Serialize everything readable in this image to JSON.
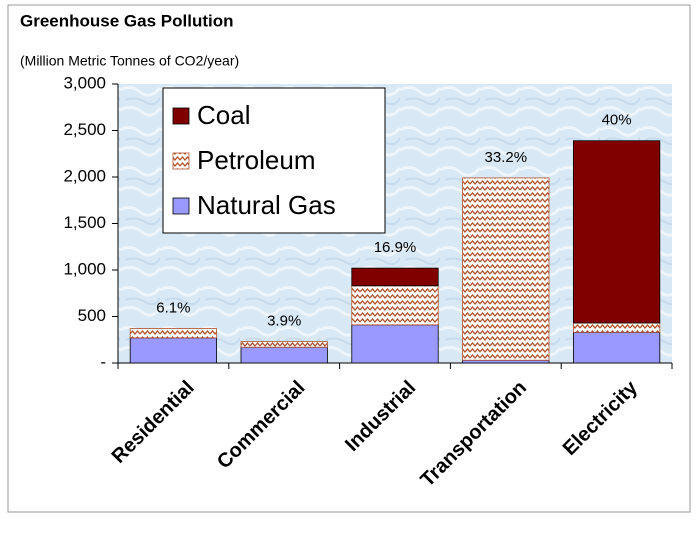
{
  "chart_data": {
    "type": "stacked_bar",
    "title": "Greenhouse Gas  Pollution",
    "subtitle": "(Million Metric Tonnes of CO2/year)",
    "categories": [
      "Residential",
      "Commercial",
      "Industrial",
      "Transportation",
      "Electricity"
    ],
    "series": [
      {
        "name": "Natural Gas",
        "color": "#9999ff",
        "values": [
          270,
          170,
          410,
          30,
          330
        ]
      },
      {
        "name": "Petroleum",
        "color": "#b0502a",
        "pattern": "zigzag",
        "values": [
          100,
          60,
          420,
          1960,
          100
        ]
      },
      {
        "name": "Coal",
        "color": "#800000",
        "values": [
          0,
          0,
          190,
          0,
          1960
        ]
      }
    ],
    "annotations": [
      "6.1%",
      "3.9%",
      "16.9%",
      "33.2%",
      "40%"
    ],
    "ylim": [
      0,
      3000
    ],
    "yticks": [
      {
        "value": 0,
        "label": "-"
      },
      500,
      {
        "value": 1000,
        "label": "1,000"
      },
      {
        "value": 1500,
        "label": "1,500"
      },
      {
        "value": 2000,
        "label": "2,000"
      },
      {
        "value": 2500,
        "label": "2,500"
      },
      {
        "value": 3000,
        "label": "3,000"
      }
    ],
    "legend": "top-left"
  }
}
